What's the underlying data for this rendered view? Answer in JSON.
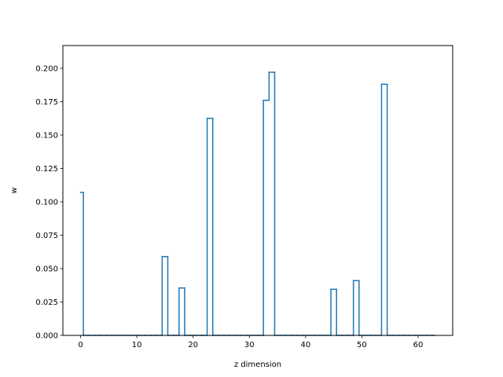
{
  "chart_data": {
    "type": "line",
    "drawstyle": "steps-mid",
    "title": "",
    "xlabel": "z dimension",
    "ylabel": "w",
    "xlim": [
      -3.15,
      66.15
    ],
    "ylim": [
      0,
      0.217
    ],
    "x_ticks": [
      0,
      10,
      20,
      30,
      40,
      50,
      60
    ],
    "x_tick_labels": [
      "0",
      "10",
      "20",
      "30",
      "40",
      "50",
      "60"
    ],
    "y_ticks": [
      0,
      0.025,
      0.05,
      0.075,
      0.1,
      0.125,
      0.15,
      0.175,
      0.2
    ],
    "y_tick_labels": [
      "0.000",
      "0.025",
      "0.050",
      "0.075",
      "0.100",
      "0.125",
      "0.150",
      "0.175",
      "0.200"
    ],
    "grid": false,
    "line_color": "#1f77b4",
    "series": [
      {
        "x": [
          0,
          1,
          2,
          3,
          4,
          5,
          6,
          7,
          8,
          9,
          10,
          11,
          12,
          13,
          14,
          15,
          16,
          17,
          18,
          19,
          20,
          21,
          22,
          23,
          24,
          25,
          26,
          27,
          28,
          29,
          30,
          31,
          32,
          33,
          34,
          35,
          36,
          37,
          38,
          39,
          40,
          41,
          42,
          43,
          44,
          45,
          46,
          47,
          48,
          49,
          50,
          51,
          52,
          53,
          54,
          55,
          56,
          57,
          58,
          59,
          60,
          61,
          62,
          63
        ],
        "values": [
          0.107,
          0,
          0,
          0,
          0,
          0,
          0,
          0,
          0,
          0,
          0,
          0,
          0,
          0,
          0,
          0.059,
          0,
          0,
          0.0355,
          0,
          0,
          0,
          0,
          0.1625,
          0,
          0,
          0,
          0,
          0,
          0,
          0,
          0,
          0,
          0.176,
          0.197,
          0,
          0,
          0,
          0,
          0,
          0,
          0,
          0,
          0,
          0,
          0.0345,
          0,
          0,
          0,
          0.041,
          0,
          0,
          0,
          0,
          0.188,
          0,
          0,
          0,
          0,
          0,
          0,
          0,
          0,
          0
        ]
      }
    ]
  }
}
